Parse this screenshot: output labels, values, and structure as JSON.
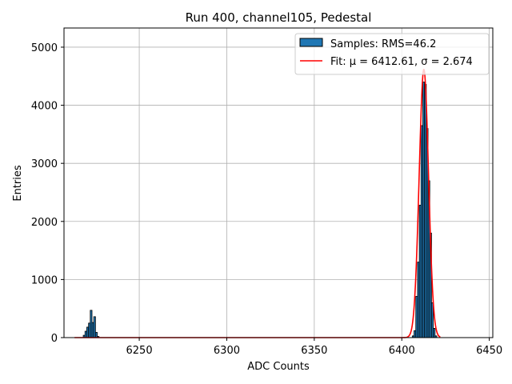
{
  "chart_data": {
    "type": "bar",
    "title": "Run 400, channel105, Pedestal",
    "xlabel": "ADC Counts",
    "ylabel": "Entries",
    "xlim": [
      6207,
      6452
    ],
    "ylim": [
      0,
      5330
    ],
    "xticks": [
      6250,
      6300,
      6350,
      6400,
      6450
    ],
    "yticks": [
      0,
      1000,
      2000,
      3000,
      4000,
      5000
    ],
    "grid": true,
    "legend_position": "top-right",
    "bar_color": "#1f77b4",
    "fit_color": "#ff0000",
    "series": [
      {
        "name": "Samples: RMS=46.2",
        "type": "histogram",
        "bins": [
          {
            "x0": 6218,
            "x1": 6219,
            "v": 40
          },
          {
            "x0": 6219,
            "x1": 6220,
            "v": 110
          },
          {
            "x0": 6220,
            "x1": 6221,
            "v": 180
          },
          {
            "x0": 6221,
            "x1": 6222,
            "v": 250
          },
          {
            "x0": 6222,
            "x1": 6223,
            "v": 470
          },
          {
            "x0": 6223,
            "x1": 6224,
            "v": 260
          },
          {
            "x0": 6224,
            "x1": 6225,
            "v": 360
          },
          {
            "x0": 6225,
            "x1": 6226,
            "v": 90
          },
          {
            "x0": 6226,
            "x1": 6227,
            "v": 20
          },
          {
            "x0": 6406,
            "x1": 6407,
            "v": 30
          },
          {
            "x0": 6407,
            "x1": 6408,
            "v": 120
          },
          {
            "x0": 6408,
            "x1": 6409,
            "v": 710
          },
          {
            "x0": 6409,
            "x1": 6410,
            "v": 1300
          },
          {
            "x0": 6410,
            "x1": 6411,
            "v": 2280
          },
          {
            "x0": 6411,
            "x1": 6412,
            "v": 3650
          },
          {
            "x0": 6412,
            "x1": 6413,
            "v": 4400
          },
          {
            "x0": 6413,
            "x1": 6414,
            "v": 4360
          },
          {
            "x0": 6414,
            "x1": 6415,
            "v": 3600
          },
          {
            "x0": 6415,
            "x1": 6416,
            "v": 2700
          },
          {
            "x0": 6416,
            "x1": 6417,
            "v": 1800
          },
          {
            "x0": 6417,
            "x1": 6418,
            "v": 600
          },
          {
            "x0": 6418,
            "x1": 6419,
            "v": 160
          },
          {
            "x0": 6419,
            "x1": 6420,
            "v": 30
          }
        ]
      },
      {
        "name": "Fit: μ = 6412.61, σ = 2.674",
        "type": "line",
        "fit": {
          "mu": 6412.61,
          "sigma": 2.674,
          "amplitude": 4620,
          "xmin": 6213,
          "xmax": 6422
        }
      }
    ]
  }
}
